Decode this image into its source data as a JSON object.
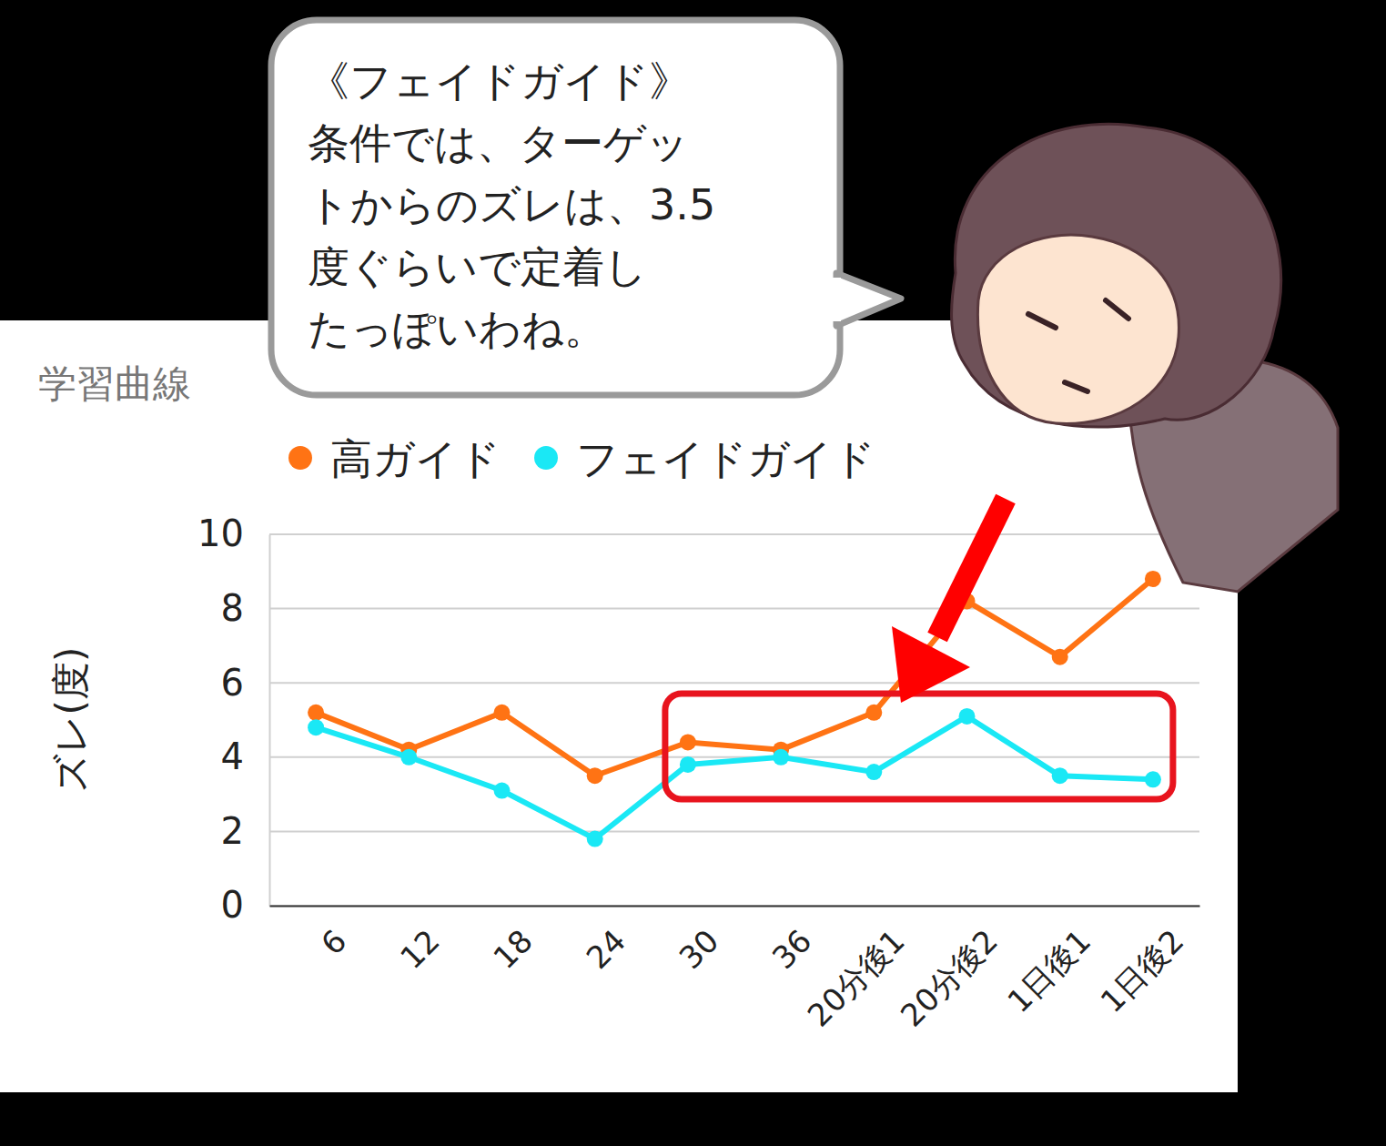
{
  "chart_data": {
    "type": "line",
    "title": "学習曲線",
    "y_label": "ズレ(度)",
    "categories": [
      "6",
      "12",
      "18",
      "24",
      "30",
      "36",
      "20分後1",
      "20分後2",
      "1日後1",
      "1日後2"
    ],
    "series": [
      {
        "name": "高ガイド",
        "color": "#ff7314",
        "marker": "circle",
        "values": [
          5.2,
          4.2,
          5.2,
          3.5,
          4.4,
          4.2,
          5.2,
          8.2,
          6.7,
          8.8
        ]
      },
      {
        "name": "フェイドガイド",
        "color": "#1ae8f5",
        "marker": "circle",
        "values": [
          4.8,
          4.0,
          3.1,
          1.8,
          3.8,
          4.0,
          3.6,
          5.1,
          3.5,
          3.4
        ]
      }
    ],
    "ylim": [
      0,
      10
    ],
    "yticks": [
      0,
      2,
      4,
      6,
      8,
      10
    ],
    "grid": true,
    "legend": "top",
    "annotation": [
      "《フェイドガイド》",
      "条件では、ターゲッ",
      "トからのズレは、3.5",
      "度ぐらいで定着し",
      "たっぽいわね。"
    ]
  }
}
